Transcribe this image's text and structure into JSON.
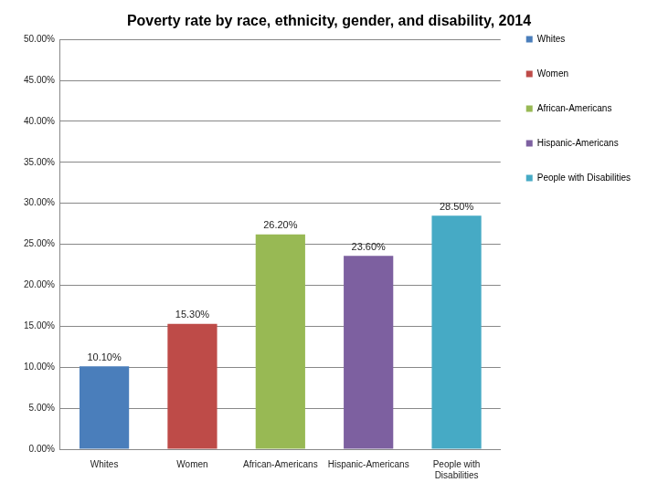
{
  "chart_data": {
    "type": "bar",
    "title": "Poverty rate by race, ethnicity, gender, and disability, 2014",
    "categories": [
      "Whites",
      "Women",
      "African-Americans",
      "Hispanic-Americans",
      "People with Disabilities"
    ],
    "values": [
      10.1,
      15.3,
      26.2,
      23.6,
      28.5
    ],
    "value_labels": [
      "10.10%",
      "15.30%",
      "26.20%",
      "23.60%",
      "28.50%"
    ],
    "colors": [
      "#4a7ebb",
      "#be4b48",
      "#98b954",
      "#7d60a0",
      "#46aac5"
    ],
    "ylim": [
      0,
      50
    ],
    "yticks": [
      {
        "value": 0,
        "label": "0.00%"
      },
      {
        "value": 5,
        "label": "5.00%"
      },
      {
        "value": 10,
        "label": "10.00%"
      },
      {
        "value": 15,
        "label": "15.00%"
      },
      {
        "value": 20,
        "label": "20.00%"
      },
      {
        "value": 25,
        "label": "25.00%"
      },
      {
        "value": 30,
        "label": "30.00%"
      },
      {
        "value": 35,
        "label": "35.00%"
      },
      {
        "value": 40,
        "label": "40.00%"
      },
      {
        "value": 45,
        "label": "45.00%"
      },
      {
        "value": 50,
        "label": "50.00%"
      }
    ],
    "grid": true,
    "legend": "right",
    "data_labels": true
  }
}
